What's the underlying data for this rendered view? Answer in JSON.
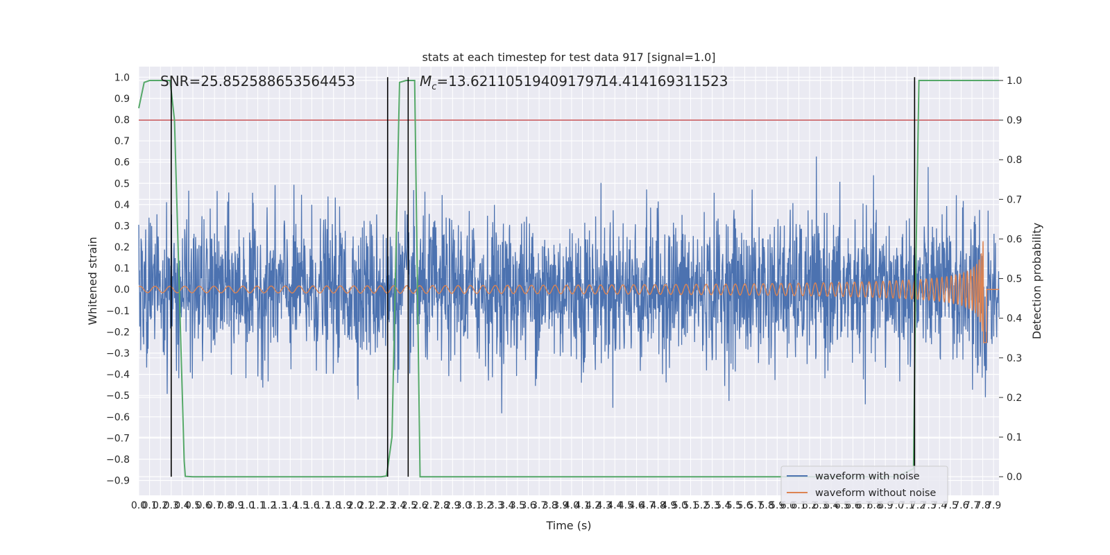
{
  "chart_data": {
    "type": "line",
    "title": "stats at each timestep for test data 917 [signal=1.0]",
    "xlabel": "Time (s)",
    "ylabel": "Whitened strain",
    "y2label": "Detection probability",
    "xlim": [
      0.0,
      7.95
    ],
    "ylim": [
      -0.97,
      1.05
    ],
    "y2lim": [
      -0.047,
      1.035
    ],
    "grid": true,
    "legend_position": "lower-right",
    "x_ticks": [
      "0.0",
      "0.1",
      "0.2",
      "0.3",
      "0.4",
      "0.5",
      "0.6",
      "0.7",
      "0.8",
      "0.9",
      "1.0",
      "1.1",
      "1.2",
      "1.3",
      "1.4",
      "1.5",
      "1.6",
      "1.7",
      "1.8",
      "1.9",
      "2.0",
      "2.1",
      "2.2",
      "2.3",
      "2.4",
      "2.5",
      "2.6",
      "2.7",
      "2.8",
      "2.9",
      "3.0",
      "3.1",
      "3.2",
      "3.3",
      "3.4",
      "3.5",
      "3.6",
      "3.7",
      "3.8",
      "3.9",
      "4.0",
      "4.1",
      "4.2",
      "4.3",
      "4.4",
      "4.5",
      "4.6",
      "4.7",
      "4.8",
      "4.9",
      "5.0",
      "5.1",
      "5.2",
      "5.3",
      "5.4",
      "5.5",
      "5.6",
      "5.7",
      "5.8",
      "5.9",
      "6.0",
      "6.1",
      "6.2",
      "6.3",
      "6.4",
      "6.5",
      "6.6",
      "6.7",
      "6.8",
      "6.9",
      "7.0",
      "7.1",
      "7.2",
      "7.3",
      "7.4",
      "7.5",
      "7.6",
      "7.7",
      "7.8",
      "7.9"
    ],
    "y_ticks": [
      "1.0",
      "0.9",
      "0.8",
      "0.7",
      "0.6",
      "0.5",
      "0.4",
      "0.3",
      "0.2",
      "0.1",
      "0.0",
      "−0.1",
      "−0.2",
      "−0.3",
      "−0.4",
      "−0.5",
      "−0.6",
      "−0.7",
      "−0.8",
      "−0.9"
    ],
    "y2_ticks": [
      "1.0",
      "0.9",
      "0.8",
      "0.7",
      "0.6",
      "0.5",
      "0.4",
      "0.3",
      "0.2",
      "0.1",
      "0.0"
    ],
    "annotations": {
      "snr": "SNR=25.852588653564453",
      "mc": "=13.621105194091797",
      "mc_symbol": "M",
      "mc_subscript": "c",
      "overlap": "14.414169311523"
    },
    "detection_threshold": 0.9,
    "vertical_markers": [
      0.3,
      2.3,
      2.49,
      7.17
    ],
    "series": [
      {
        "name": "waveform with noise",
        "color": "#4c72b0",
        "std": 0.17,
        "x_range": [
          0.0,
          7.95
        ]
      },
      {
        "name": "waveform without noise",
        "color": "#dd8452",
        "kind": "chirp",
        "merger_time": 7.82,
        "amp_start": 0.015,
        "amp_peak": 0.68
      },
      {
        "color": "#55a868",
        "x": [
          0.0,
          0.05,
          0.1,
          0.15,
          0.29,
          0.33,
          0.42,
          0.43,
          0.5,
          1.0,
          1.5,
          2.0,
          2.24,
          2.29,
          2.34,
          2.38,
          2.41,
          2.47,
          2.55,
          2.6,
          3.0,
          4.0,
          5.0,
          6.0,
          7.0,
          7.16,
          7.18,
          7.21,
          8.0
        ],
        "values": [
          0.93,
          0.995,
          1.0,
          1.0,
          1.0,
          0.9,
          0.04,
          0.001,
          0.0,
          0.0,
          0.0,
          0.0,
          0.0,
          0.002,
          0.1,
          0.6,
          0.995,
          1.0,
          1.0,
          0.0,
          0.0,
          0.0,
          0.0,
          0.0,
          0.0,
          0.02,
          0.5,
          1.0,
          1.0
        ]
      },
      {
        "color": "#c44e52",
        "kind": "hline",
        "value": 0.9
      }
    ]
  },
  "legend": {
    "items": [
      {
        "label": "waveform with noise",
        "color": "#4c72b0"
      },
      {
        "label": "waveform without noise",
        "color": "#dd8452"
      }
    ]
  },
  "style": {
    "plot_bg": "#eaeaf2",
    "grid": "#ffffff",
    "marker": "#000000"
  }
}
